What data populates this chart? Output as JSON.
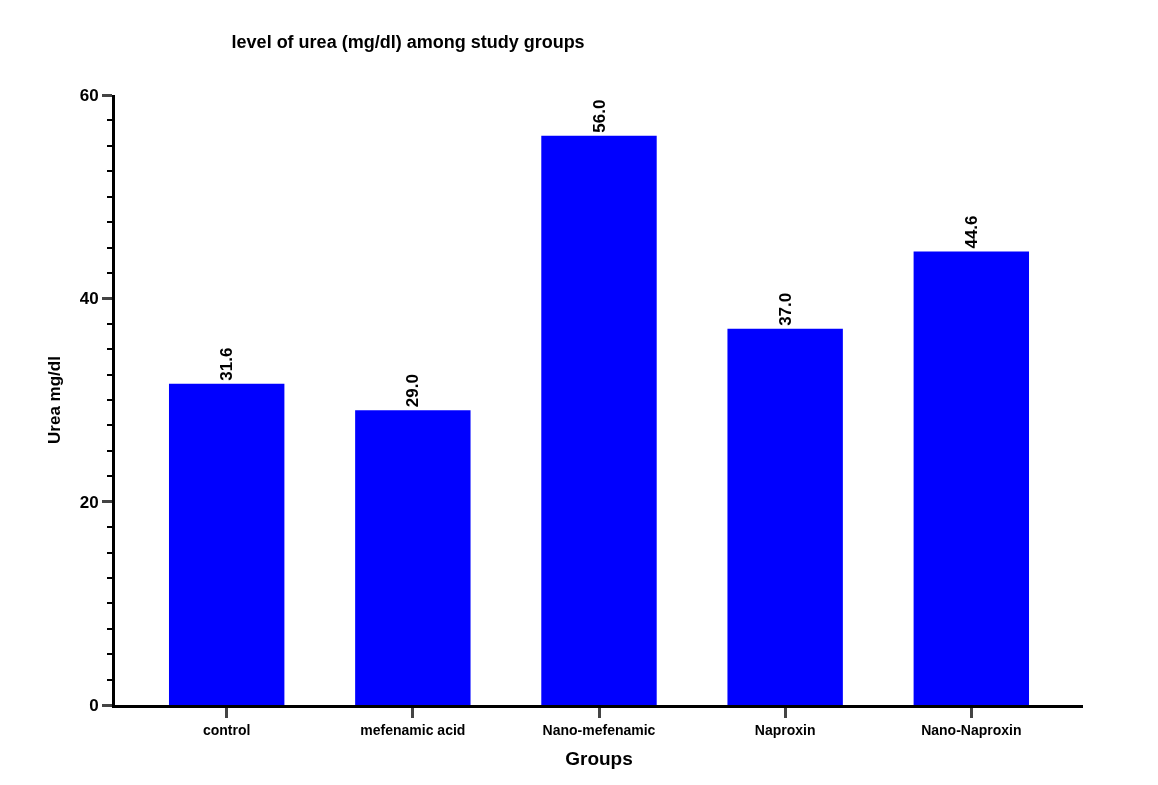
{
  "chart_data": {
    "type": "bar",
    "title": "level of urea (mg/dl) among study groups",
    "xlabel": "Groups",
    "ylabel": "Urea mg/dl",
    "categories": [
      "control",
      "mefenamic acid",
      "Nano-mefenamic",
      "Naproxin",
      "Nano-Naproxin"
    ],
    "values": [
      31.6,
      29.0,
      56.0,
      37.0,
      44.6
    ],
    "value_labels": [
      "31.6",
      "29.0",
      "56.0",
      "37.0",
      "44.6"
    ],
    "color": "#0000ff",
    "ylim": [
      0,
      60
    ],
    "yticks": [
      0,
      20,
      40,
      60
    ]
  }
}
